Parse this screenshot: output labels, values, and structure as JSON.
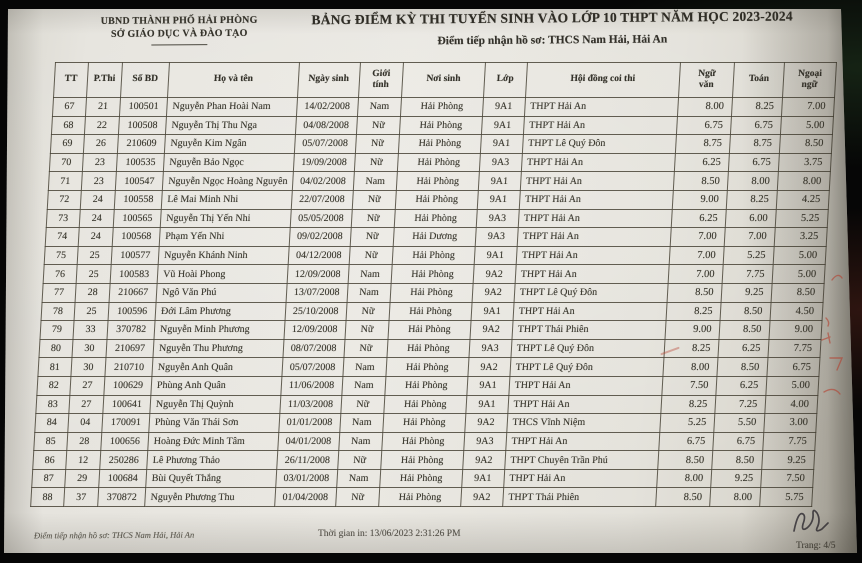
{
  "document": {
    "org_line1": "UBND THÀNH PHỐ HẢI PHÒNG",
    "org_line2": "SỞ GIÁO DỤC VÀ ĐÀO TẠO",
    "title": "BẢNG ĐIỂM KỲ THI TUYỂN SINH VÀO LỚP 10 THPT NĂM HỌC 2023-2024",
    "subtitle": "Điểm tiếp nhận hồ sơ: THCS Nam Hải, Hải An"
  },
  "table": {
    "headers": [
      "TT",
      "P.Thi",
      "Số BD",
      "Họ và tên",
      "Ngày sinh",
      "Giới\ntính",
      "Nơi sinh",
      "Lớp",
      "Hội đồng coi thi",
      "Ngữ\nvăn",
      "Toán",
      "Ngoại\nngữ"
    ],
    "rows": [
      [
        "67",
        "21",
        "100501",
        "Nguyễn Phan Hoài Nam",
        "14/02/2008",
        "Nam",
        "Hải Phòng",
        "9A1",
        "THPT Hải An",
        "8.00",
        "8.25",
        "7.00"
      ],
      [
        "68",
        "22",
        "100508",
        "Nguyễn Thị Thu Nga",
        "04/08/2008",
        "Nữ",
        "Hải Phòng",
        "9A1",
        "THPT Hải An",
        "6.75",
        "6.75",
        "5.00"
      ],
      [
        "69",
        "26",
        "210609",
        "Nguyễn Kim Ngân",
        "05/07/2008",
        "Nữ",
        "Hải Phòng",
        "9A1",
        "THPT Lê Quý Đôn",
        "8.75",
        "8.75",
        "8.50"
      ],
      [
        "70",
        "23",
        "100535",
        "Nguyễn Bảo Ngọc",
        "19/09/2008",
        "Nữ",
        "Hải Phòng",
        "9A3",
        "THPT Hải An",
        "6.25",
        "6.75",
        "3.75"
      ],
      [
        "71",
        "23",
        "100547",
        "Nguyễn Ngọc Hoàng Nguyên",
        "04/02/2008",
        "Nam",
        "Hải Phòng",
        "9A1",
        "THPT Hải An",
        "8.50",
        "8.00",
        "8.00"
      ],
      [
        "72",
        "24",
        "100558",
        "Lê Mai Minh Nhi",
        "22/07/2008",
        "Nữ",
        "Hải Phòng",
        "9A1",
        "THPT Hải An",
        "9.00",
        "8.25",
        "4.25"
      ],
      [
        "73",
        "24",
        "100565",
        "Nguyễn Thị Yến Nhi",
        "05/05/2008",
        "Nữ",
        "Hải Phòng",
        "9A3",
        "THPT Hải An",
        "6.25",
        "6.00",
        "5.25"
      ],
      [
        "74",
        "24",
        "100568",
        "Phạm Yến Nhi",
        "09/02/2008",
        "Nữ",
        "Hải Dương",
        "9A3",
        "THPT Hải An",
        "7.00",
        "7.00",
        "3.25"
      ],
      [
        "75",
        "25",
        "100577",
        "Nguyễn Khánh Ninh",
        "04/12/2008",
        "Nữ",
        "Hải Phòng",
        "9A1",
        "THPT Hải An",
        "7.00",
        "5.25",
        "5.00"
      ],
      [
        "76",
        "25",
        "100583",
        "Vũ Hoài Phong",
        "12/09/2008",
        "Nam",
        "Hải Phòng",
        "9A2",
        "THPT Hải An",
        "7.00",
        "7.75",
        "5.00"
      ],
      [
        "77",
        "28",
        "210667",
        "Ngô Văn Phú",
        "13/07/2008",
        "Nam",
        "Hải Phòng",
        "9A2",
        "THPT Lê Quý Đôn",
        "8.50",
        "9.25",
        "8.50"
      ],
      [
        "78",
        "25",
        "100596",
        "Đới Lâm Phương",
        "25/10/2008",
        "Nữ",
        "Hải Phòng",
        "9A1",
        "THPT Hải An",
        "8.25",
        "8.50",
        "4.50"
      ],
      [
        "79",
        "33",
        "370782",
        "Nguyễn Minh Phương",
        "12/09/2008",
        "Nữ",
        "Hải Phòng",
        "9A2",
        "THPT Thái Phiên",
        "9.00",
        "8.50",
        "9.00"
      ],
      [
        "80",
        "30",
        "210697",
        "Nguyễn Thu Phương",
        "08/07/2008",
        "Nữ",
        "Hải Phòng",
        "9A3",
        "THPT Lê Quý Đôn",
        "8.25",
        "6.25",
        "7.75"
      ],
      [
        "81",
        "30",
        "210710",
        "Nguyễn Anh Quân",
        "05/07/2008",
        "Nam",
        "Hải Phòng",
        "9A2",
        "THPT Lê Quý Đôn",
        "8.00",
        "8.50",
        "6.75"
      ],
      [
        "82",
        "27",
        "100629",
        "Phùng Anh Quân",
        "11/06/2008",
        "Nam",
        "Hải Phòng",
        "9A1",
        "THPT Hải An",
        "7.50",
        "6.25",
        "5.00"
      ],
      [
        "83",
        "27",
        "100641",
        "Nguyễn Thị Quỳnh",
        "11/03/2008",
        "Nữ",
        "Hải Phòng",
        "9A1",
        "THPT Hải An",
        "8.25",
        "7.25",
        "4.00"
      ],
      [
        "84",
        "04",
        "170091",
        "Phùng Văn Thái Sơn",
        "01/01/2008",
        "Nam",
        "Hải Phòng",
        "9A2",
        "THCS Vĩnh Niệm",
        "5.25",
        "5.50",
        "3.00"
      ],
      [
        "85",
        "28",
        "100656",
        "Hoàng Đức Minh Tâm",
        "04/01/2008",
        "Nam",
        "Hải Phòng",
        "9A3",
        "THPT Hải An",
        "6.75",
        "6.75",
        "7.75"
      ],
      [
        "86",
        "12",
        "250286",
        "Lê Phương Thảo",
        "26/11/2008",
        "Nữ",
        "Hải Phòng",
        "9A2",
        "THPT Chuyên Trần Phú",
        "8.50",
        "8.50",
        "9.25"
      ],
      [
        "87",
        "29",
        "100684",
        "Bùi Quyết Thắng",
        "03/01/2008",
        "Nam",
        "Hải Phòng",
        "9A1",
        "THPT Hải An",
        "8.00",
        "9.25",
        "7.50"
      ],
      [
        "88",
        "37",
        "370872",
        "Nguyễn Phương Thu",
        "01/04/2008",
        "Nữ",
        "Hải Phòng",
        "9A2",
        "THPT Thái Phiên",
        "8.50",
        "8.00",
        "5.75"
      ]
    ]
  },
  "footer": {
    "left": "Điểm tiếp nhận hồ sơ: THCS Nam Hải, Hải An",
    "center": "Thời gian in: 13/06/2023 2:31:26 PM",
    "right": "Trang: 4/5"
  },
  "colors": {
    "paper": "#e8e6e0",
    "ink": "#3a382f",
    "table_border": "#494437",
    "red_pen": "#b5402f",
    "background": "#060606"
  }
}
